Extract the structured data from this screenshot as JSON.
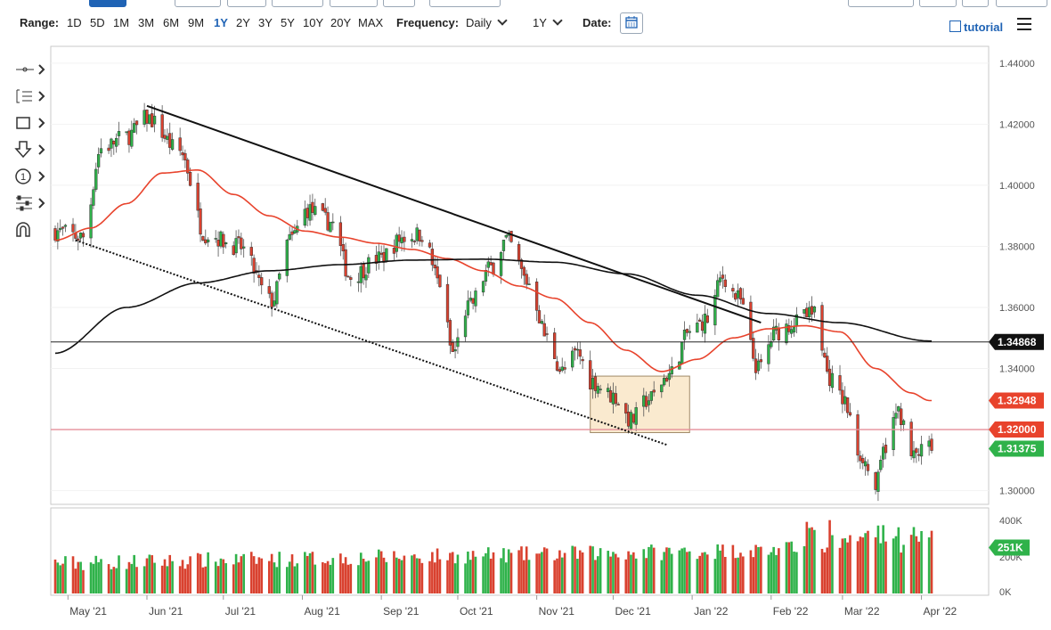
{
  "toolbar": {
    "range_label": "Range:",
    "ranges": [
      "1D",
      "5D",
      "1M",
      "3M",
      "6M",
      "9M",
      "1Y",
      "2Y",
      "3Y",
      "5Y",
      "10Y",
      "20Y",
      "MAX"
    ],
    "active_range": "1Y",
    "frequency_label": "Frequency:",
    "frequency_value": "Daily",
    "period_value": "1Y",
    "date_label": "Date:",
    "tutorial_label": "tutorial"
  },
  "icons": [
    "calendar-icon",
    "tutorial-icon",
    "menu-icon",
    "crosshair-icon",
    "studies-icon",
    "rectangle-icon",
    "arrow-down-icon",
    "number-circle-icon",
    "settings-sliders-icon",
    "magnet-icon"
  ],
  "colors": {
    "up": "#2fb24a",
    "down": "#d9412f",
    "ma_fast": "#e8432c",
    "ma_slow": "#111111",
    "level": "#e58f9a",
    "box": "#f6d9a8"
  },
  "chart_data": {
    "type": "candlestick",
    "subject": "daily price chart with 50-day and 200-day moving averages",
    "y_ticks": [
      "1.44000",
      "1.42000",
      "1.40000",
      "1.38000",
      "1.36000",
      "1.34000",
      "1.32000",
      "1.30000"
    ],
    "ylim": [
      1.2955,
      1.4455
    ],
    "x_ticks": [
      "May '21",
      "Jun '21",
      "Jul '21",
      "Aug '21",
      "Sep '21",
      "Oct '21",
      "Nov '21",
      "Dec '21",
      "Jan '22",
      "Feb '22",
      "Mar '22",
      "Apr '22"
    ],
    "x_range": [
      "2021-04-26",
      "2022-04-05"
    ],
    "price_tags": [
      {
        "value": "1.34868",
        "kind": "horizontal line"
      },
      {
        "value": "1.32948",
        "kind": "50-day MA"
      },
      {
        "value": "1.32000",
        "kind": "support level"
      },
      {
        "value": "1.31375",
        "kind": "last price"
      }
    ],
    "horizontal_lines": [
      1.34868,
      1.32
    ],
    "trendlines": [
      {
        "style": "solid",
        "from": [
          "2021-06-01",
          1.426
        ],
        "to": [
          "2022-01-28",
          1.355
        ]
      },
      {
        "style": "dotted",
        "from": [
          "2021-05-04",
          1.382
        ],
        "to": [
          "2021-12-22",
          1.315
        ]
      }
    ],
    "box": {
      "from": [
        "2021-11-22",
        1.3375
      ],
      "to": [
        "2021-12-31",
        1.319
      ]
    },
    "price_anchors": [
      [
        "2021-04-26",
        1.385
      ],
      [
        "2021-05-07",
        1.383
      ],
      [
        "2021-05-14",
        1.412
      ],
      [
        "2021-05-24",
        1.416
      ],
      [
        "2021-06-01",
        1.422
      ],
      [
        "2021-06-14",
        1.411
      ],
      [
        "2021-06-24",
        1.384
      ],
      [
        "2021-07-07",
        1.38
      ],
      [
        "2021-07-20",
        1.362
      ],
      [
        "2021-07-27",
        1.382
      ],
      [
        "2021-08-03",
        1.392
      ],
      [
        "2021-08-12",
        1.388
      ],
      [
        "2021-08-20",
        1.37
      ],
      [
        "2021-08-31",
        1.376
      ],
      [
        "2021-09-10",
        1.383
      ],
      [
        "2021-09-17",
        1.384
      ],
      [
        "2021-09-24",
        1.368
      ],
      [
        "2021-09-29",
        1.345
      ],
      [
        "2021-10-05",
        1.36
      ],
      [
        "2021-10-14",
        1.373
      ],
      [
        "2021-10-20",
        1.382
      ],
      [
        "2021-10-29",
        1.368
      ],
      [
        "2021-11-05",
        1.35
      ],
      [
        "2021-11-11",
        1.339
      ],
      [
        "2021-11-17",
        1.345
      ],
      [
        "2021-11-22",
        1.336
      ],
      [
        "2021-12-01",
        1.331
      ],
      [
        "2021-12-08",
        1.323
      ],
      [
        "2021-12-15",
        1.33
      ],
      [
        "2021-12-23",
        1.338
      ],
      [
        "2021-12-31",
        1.352
      ],
      [
        "2022-01-07",
        1.356
      ],
      [
        "2022-01-13",
        1.37
      ],
      [
        "2022-01-19",
        1.363
      ],
      [
        "2022-01-27",
        1.34
      ],
      [
        "2022-02-03",
        1.352
      ],
      [
        "2022-02-10",
        1.355
      ],
      [
        "2022-02-18",
        1.359
      ],
      [
        "2022-02-24",
        1.337
      ],
      [
        "2022-03-01",
        1.33
      ],
      [
        "2022-03-08",
        1.312
      ],
      [
        "2022-03-14",
        1.301
      ],
      [
        "2022-03-18",
        1.315
      ],
      [
        "2022-03-23",
        1.326
      ],
      [
        "2022-03-28",
        1.311
      ],
      [
        "2022-04-04",
        1.314
      ]
    ],
    "ma50_anchors": [
      [
        "2021-04-26",
        1.382
      ],
      [
        "2021-05-10",
        1.386
      ],
      [
        "2021-05-24",
        1.394
      ],
      [
        "2021-06-07",
        1.404
      ],
      [
        "2021-06-21",
        1.405
      ],
      [
        "2021-07-05",
        1.397
      ],
      [
        "2021-07-19",
        1.39
      ],
      [
        "2021-08-02",
        1.385
      ],
      [
        "2021-08-16",
        1.383
      ],
      [
        "2021-08-30",
        1.381
      ],
      [
        "2021-09-13",
        1.379
      ],
      [
        "2021-09-27",
        1.376
      ],
      [
        "2021-10-11",
        1.372
      ],
      [
        "2021-10-25",
        1.367
      ],
      [
        "2021-11-08",
        1.363
      ],
      [
        "2021-11-22",
        1.355
      ],
      [
        "2021-12-06",
        1.346
      ],
      [
        "2021-12-20",
        1.339
      ],
      [
        "2022-01-03",
        1.343
      ],
      [
        "2022-01-17",
        1.35
      ],
      [
        "2022-01-31",
        1.353
      ],
      [
        "2022-02-14",
        1.354
      ],
      [
        "2022-02-28",
        1.352
      ],
      [
        "2022-03-14",
        1.34
      ],
      [
        "2022-03-28",
        1.332
      ],
      [
        "2022-04-04",
        1.3295
      ]
    ],
    "ma200_anchors": [
      [
        "2021-04-26",
        1.345
      ],
      [
        "2021-05-24",
        1.36
      ],
      [
        "2021-06-21",
        1.368
      ],
      [
        "2021-07-19",
        1.372
      ],
      [
        "2021-08-16",
        1.374
      ],
      [
        "2021-09-13",
        1.3755
      ],
      [
        "2021-10-11",
        1.3758
      ],
      [
        "2021-11-08",
        1.3748
      ],
      [
        "2021-12-06",
        1.371
      ],
      [
        "2022-01-03",
        1.364
      ],
      [
        "2022-01-31",
        1.358
      ],
      [
        "2022-02-28",
        1.355
      ],
      [
        "2022-04-04",
        1.349
      ]
    ],
    "volume": {
      "ticks": [
        "400K",
        "251K",
        "200K",
        "0K"
      ],
      "last": "251K",
      "ylim": [
        0,
        400000
      ]
    }
  }
}
